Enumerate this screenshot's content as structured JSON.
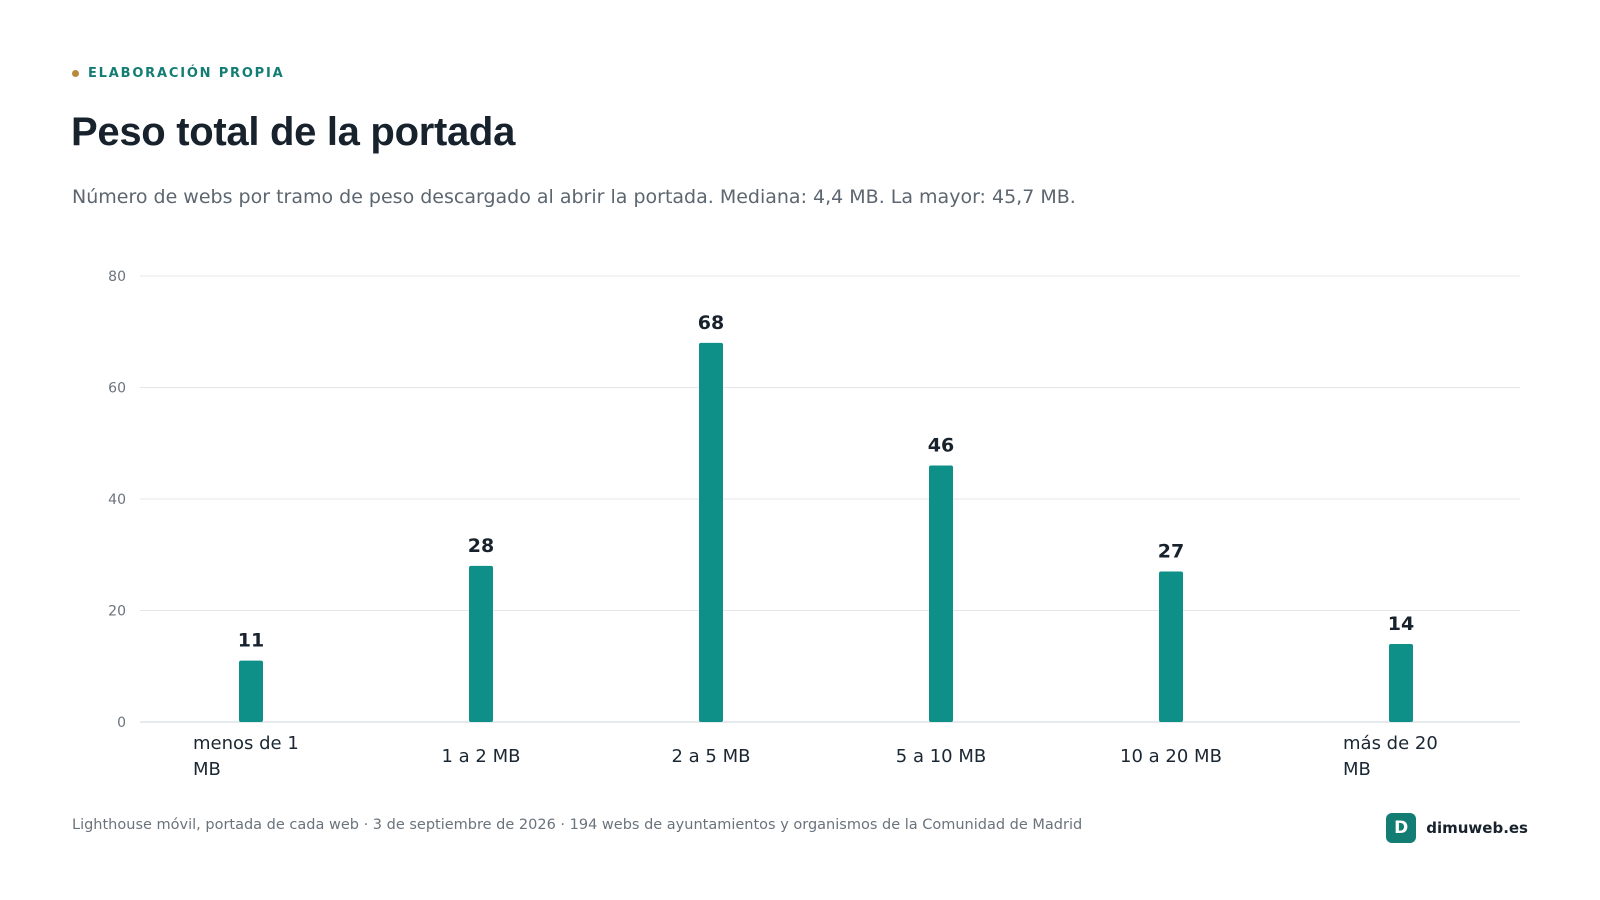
{
  "header": {
    "eyebrow": "ELABORACIÓN PROPIA",
    "title": "Peso total de la portada",
    "subtitle": "Número de webs por tramo de peso descargado al abrir la portada. Mediana: 4,4 MB. La mayor: 45,7 MB."
  },
  "chart_data": {
    "type": "bar",
    "categories": [
      "menos de 1 MB",
      "1 a 2 MB",
      "2 a 5 MB",
      "5 a 10 MB",
      "10 a 20 MB",
      "más de 20 MB"
    ],
    "category_lines": [
      [
        "menos de 1",
        "MB"
      ],
      [
        "1 a 2 MB"
      ],
      [
        "2 a 5 MB"
      ],
      [
        "5 a 10 MB"
      ],
      [
        "10 a 20 MB"
      ],
      [
        "más de 20",
        "MB"
      ]
    ],
    "values": [
      11,
      28,
      68,
      46,
      27,
      14
    ],
    "ylim": [
      0,
      80
    ],
    "yticks": [
      0,
      20,
      40,
      60,
      80
    ],
    "grid": true,
    "bar_color": "#0e8f87"
  },
  "footer": {
    "source": "Lighthouse móvil, portada de cada web · 3 de septiembre de 2026 · 194 webs de ayuntamientos y organismos de la Comunidad de Madrid",
    "brand_logo": "D",
    "brand_name": "dimuweb.es"
  },
  "colors": {
    "accent": "#137d74",
    "dot": "#b8893a"
  }
}
